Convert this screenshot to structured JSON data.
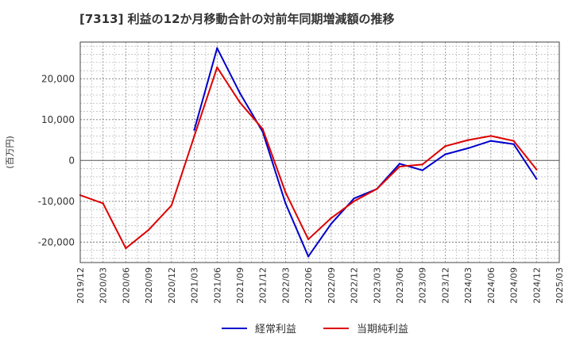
{
  "chart_data": {
    "type": "line",
    "title": "[7313]  利益の12か月移動合計の対前年同期増減額の推移",
    "ylabel": "(百万円)",
    "xlabel": "",
    "ylim": [
      -25000,
      29000
    ],
    "yticks": [
      20000,
      10000,
      0,
      -10000,
      -20000
    ],
    "ytick_labels": [
      "20,000",
      "10,000",
      "0",
      "-10,000",
      "-20,000"
    ],
    "categories": [
      "2019/12",
      "2020/03",
      "2020/06",
      "2020/09",
      "2020/12",
      "2021/03",
      "2021/06",
      "2021/09",
      "2021/12",
      "2022/03",
      "2022/06",
      "2022/09",
      "2022/12",
      "2023/03",
      "2023/06",
      "2023/09",
      "2023/12",
      "2024/03",
      "2024/06",
      "2024/09",
      "2024/12",
      "2025/03"
    ],
    "series": [
      {
        "name": "経常利益",
        "color": "#0000cc",
        "values": [
          null,
          null,
          null,
          null,
          null,
          7500,
          27500,
          16500,
          7000,
          -10500,
          -23500,
          -15500,
          -9300,
          -7000,
          -800,
          -2400,
          1500,
          3000,
          4800,
          4000,
          -4500,
          null
        ]
      },
      {
        "name": "当期純利益",
        "color": "#dd0000",
        "values": [
          -8500,
          -10500,
          -21500,
          -17000,
          -11000,
          6000,
          22800,
          14200,
          7700,
          -7800,
          -19300,
          -14100,
          -10000,
          -7000,
          -1500,
          -1000,
          3500,
          5000,
          6000,
          4800,
          -2200,
          null
        ]
      }
    ]
  }
}
